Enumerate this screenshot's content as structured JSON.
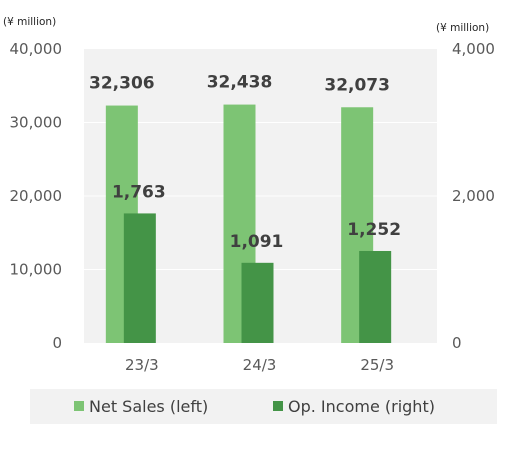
{
  "chart_data": {
    "type": "bar",
    "categories": [
      "23/3",
      "24/3",
      "25/3"
    ],
    "series": [
      {
        "name": "Net Sales (left)",
        "axis": "left",
        "values": [
          32306,
          32438,
          32073
        ],
        "labels": [
          "32,306",
          "32,438",
          "32,073"
        ],
        "color": "#7DC474"
      },
      {
        "name": "Op. Income (right)",
        "axis": "right",
        "values": [
          1763,
          1091,
          1252
        ],
        "labels": [
          "1,763",
          "1,091",
          "1,252"
        ],
        "color": "#449447"
      }
    ],
    "left_axis": {
      "unit": "(¥ million)",
      "ylim": [
        0,
        40000
      ],
      "ticks": [
        "0",
        "10,000",
        "20,000",
        "30,000",
        "40,000"
      ]
    },
    "right_axis": {
      "unit": "(¥ million)",
      "ylim": [
        0,
        4000
      ],
      "ticks": [
        "0",
        "2,000",
        "4,000"
      ]
    },
    "grid": true,
    "legend_position": "bottom",
    "plot_background": "#f2f2f2",
    "legend_background": "#f2f2f2"
  }
}
